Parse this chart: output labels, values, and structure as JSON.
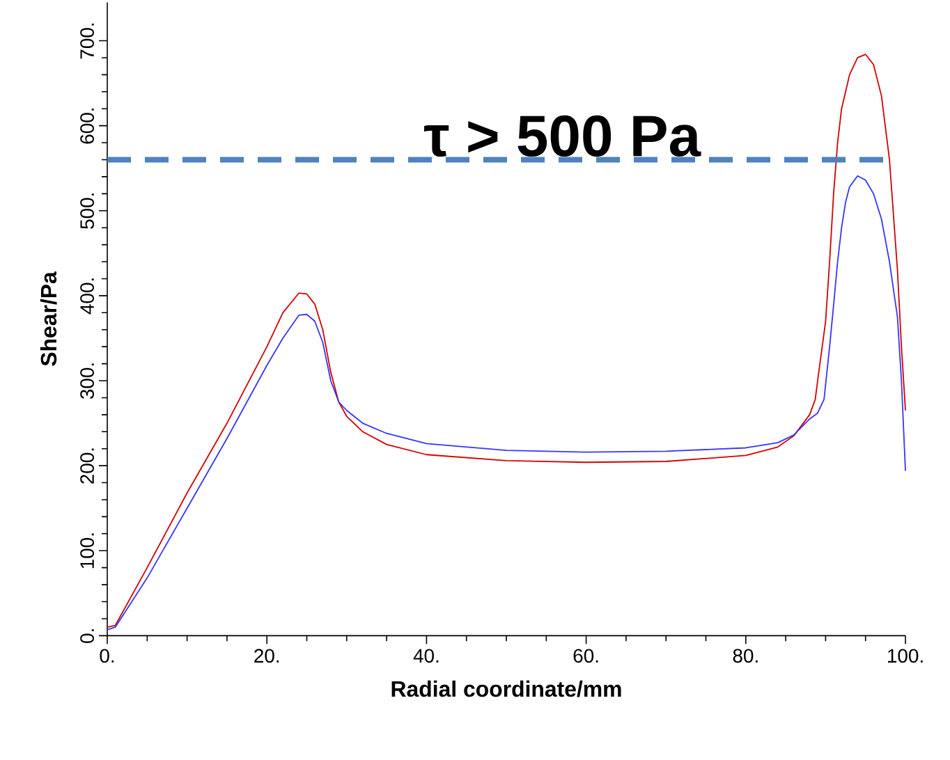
{
  "chart_data": {
    "type": "line",
    "xlabel": "Radial coordinate/mm",
    "ylabel": "Shear/Pa",
    "xlim": [
      0,
      100
    ],
    "ylim": [
      0,
      745
    ],
    "xticks": [
      {
        "value": 0,
        "label": "0."
      },
      {
        "value": 20,
        "label": "20."
      },
      {
        "value": 40,
        "label": "40."
      },
      {
        "value": 60,
        "label": "60."
      },
      {
        "value": 80,
        "label": "80."
      },
      {
        "value": 100,
        "label": "100."
      }
    ],
    "yticks": [
      {
        "value": 0,
        "label": "0."
      },
      {
        "value": 100,
        "label": "100."
      },
      {
        "value": 200,
        "label": "200."
      },
      {
        "value": 300,
        "label": "300."
      },
      {
        "value": 400,
        "label": "400."
      },
      {
        "value": 500,
        "label": "500."
      },
      {
        "value": 600,
        "label": "600."
      },
      {
        "value": 700,
        "label": "700."
      }
    ],
    "grid": false,
    "marker": "none",
    "line_style": "solid",
    "series": [
      {
        "color": "#d40000",
        "x": [
          0,
          1,
          5,
          10,
          15,
          20,
          22,
          24,
          25,
          26,
          27,
          28,
          29,
          30,
          32,
          35,
          40,
          50,
          60,
          70,
          80,
          84,
          86,
          88,
          88.7,
          89,
          90,
          90.5,
          91,
          91.5,
          92,
          93,
          94,
          95,
          96,
          97,
          98,
          99,
          99.5,
          100
        ],
        "values": [
          10,
          12,
          80,
          168,
          250,
          340,
          380,
          403,
          402,
          390,
          360,
          310,
          275,
          258,
          240,
          225,
          213,
          206,
          204,
          205,
          212,
          222,
          235,
          260,
          278,
          300,
          370,
          440,
          520,
          580,
          620,
          660,
          680,
          684,
          672,
          635,
          560,
          430,
          340,
          265
        ]
      },
      {
        "color": "#3535ff",
        "x": [
          0,
          1,
          5,
          10,
          15,
          20,
          22,
          24,
          25,
          26,
          27,
          28,
          29,
          30,
          32,
          35,
          40,
          50,
          60,
          70,
          80,
          84,
          86,
          88,
          89,
          89.8,
          90.5,
          91,
          91.5,
          92,
          92.5,
          93,
          94,
          95,
          96,
          97,
          98,
          99,
          99.5,
          100
        ],
        "values": [
          7,
          10,
          68,
          150,
          232,
          318,
          350,
          377,
          378,
          370,
          345,
          300,
          275,
          265,
          250,
          238,
          226,
          218,
          216,
          217,
          221,
          227,
          236,
          255,
          262,
          278,
          340,
          389,
          440,
          480,
          510,
          528,
          541,
          536,
          520,
          490,
          440,
          375,
          300,
          194
        ]
      }
    ],
    "ref_lines": [
      {
        "axis": "y",
        "value": 560,
        "label": "τ > 500 Pa",
        "color": "#4f81bd",
        "line_style": "dashed"
      }
    ]
  }
}
